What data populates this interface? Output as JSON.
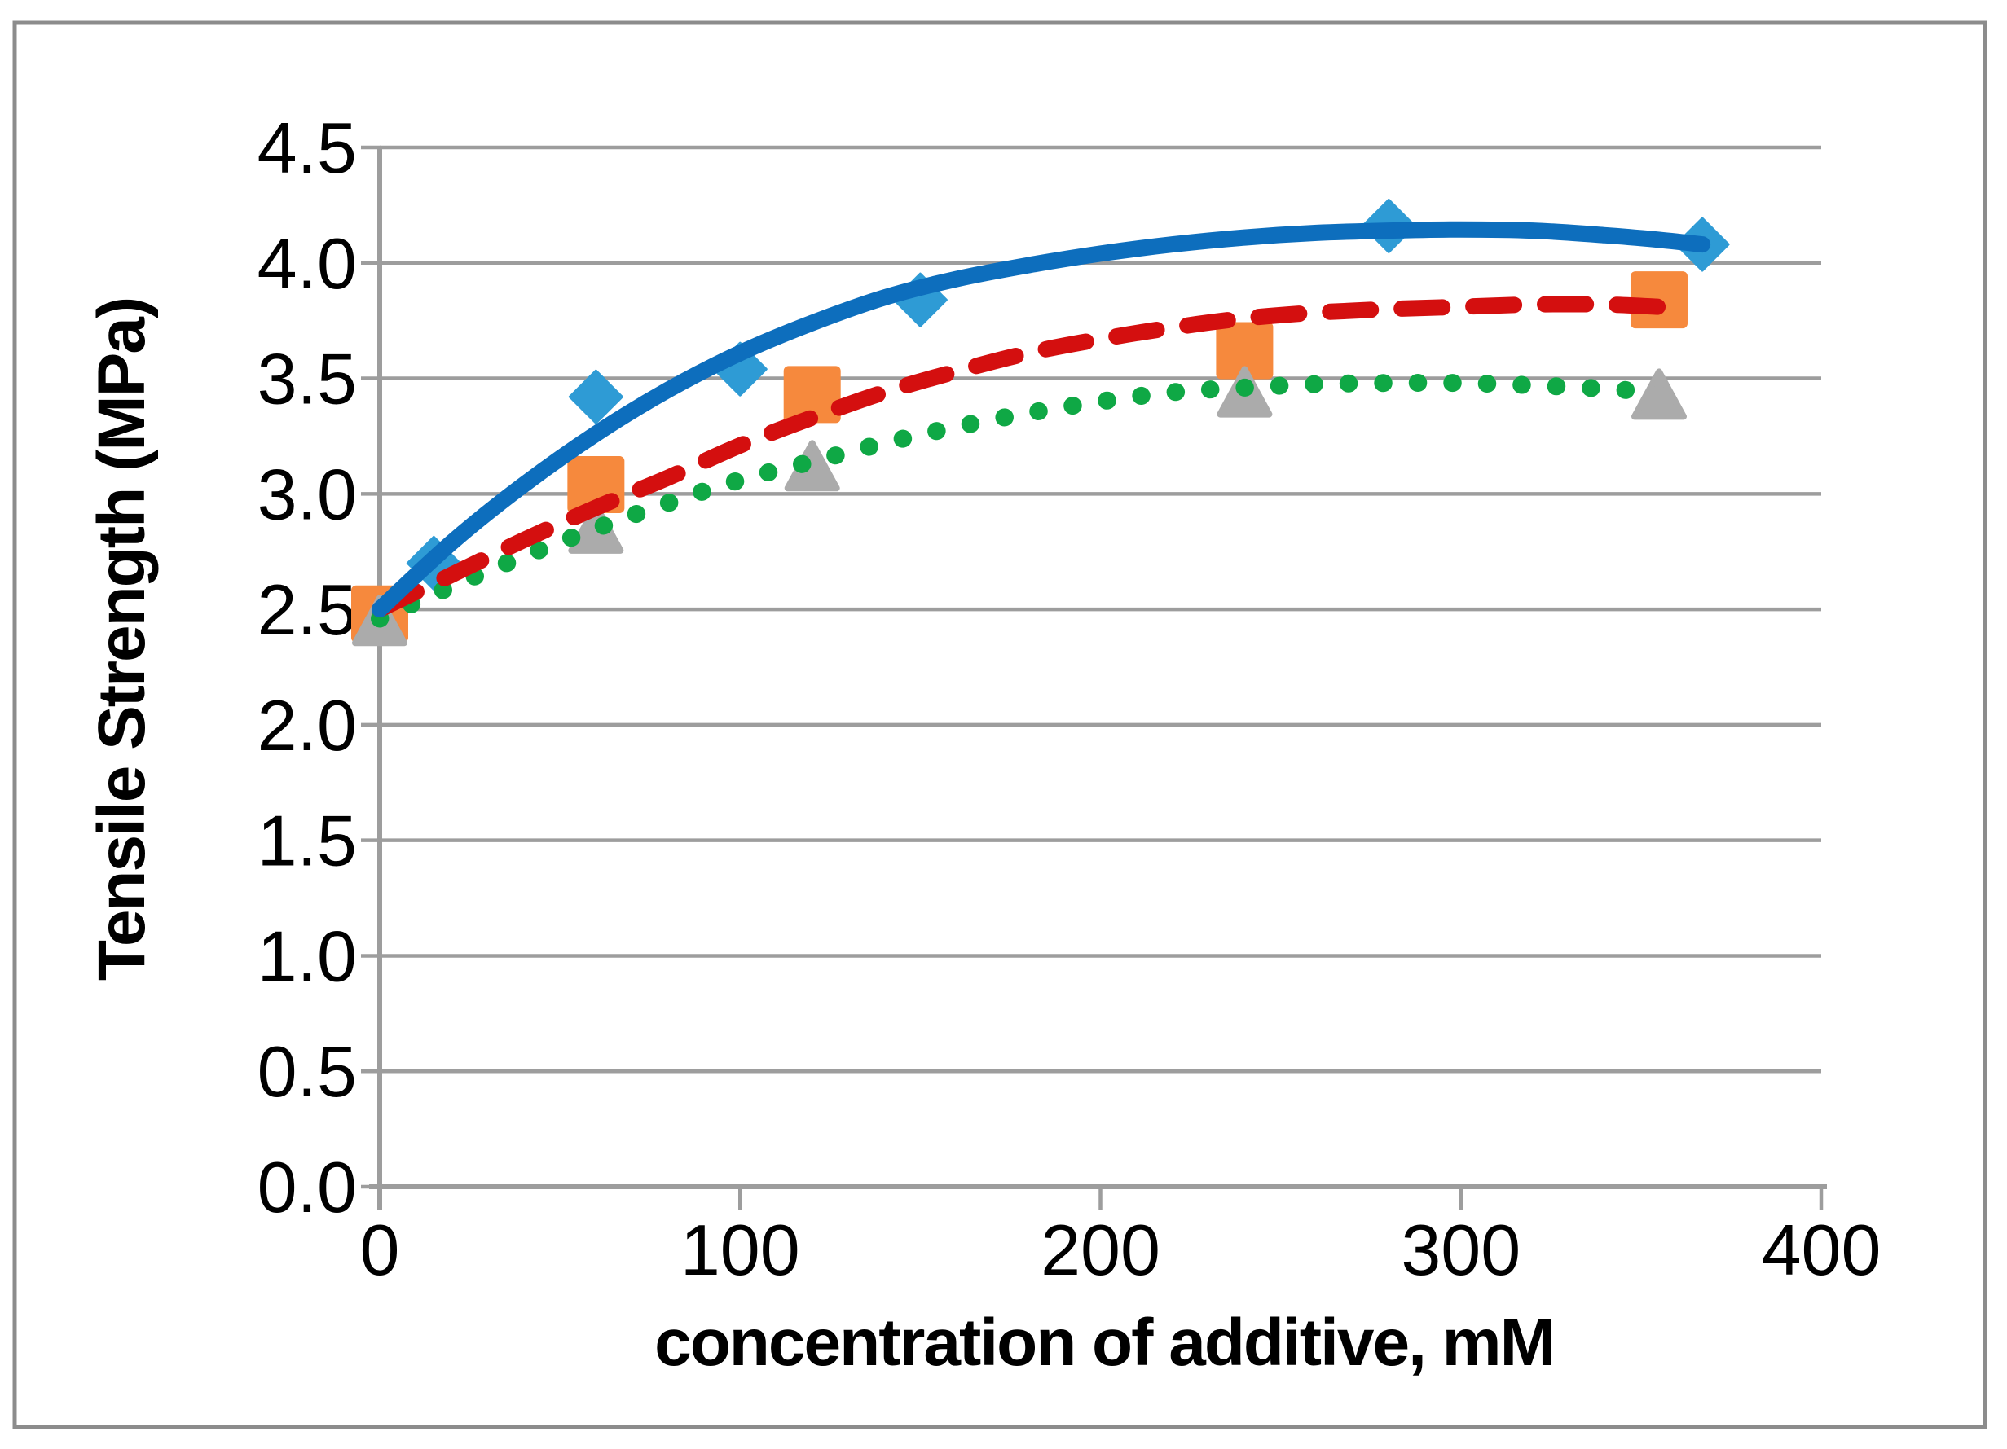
{
  "page": {
    "background": "#FFFFFF",
    "border_color": "#8C8C8C"
  },
  "chart_data": {
    "type": "scatter",
    "title": "",
    "xlabel": "concentration of additive, mM",
    "ylabel": "Tensile Strength (MPa)",
    "xlim": [
      0,
      400
    ],
    "ylim": [
      0.0,
      4.5
    ],
    "grid": {
      "horizontal": true,
      "vertical": false,
      "color": "#9D9D9D"
    },
    "legend": "none",
    "x_ticks": {
      "values": [
        0,
        100,
        200,
        300,
        400
      ],
      "labels": [
        "0",
        "100",
        "200",
        "300",
        "400"
      ]
    },
    "y_ticks": {
      "values": [
        0,
        0.5,
        1.0,
        1.5,
        2.0,
        2.5,
        3.0,
        3.5,
        4.0,
        4.5
      ],
      "labels": [
        "0.0",
        "0.5",
        "1.0",
        "1.5",
        "2.0",
        "2.5",
        "3.0",
        "3.5",
        "4.0",
        "4.5"
      ]
    },
    "series": [
      {
        "name": "blue-diamond-series",
        "marker": "diamond",
        "marker_color": "#2E9BD5",
        "points": [
          [
            0,
            2.47
          ],
          [
            15,
            2.7
          ],
          [
            60,
            3.42
          ],
          [
            100,
            3.54
          ],
          [
            150,
            3.84
          ],
          [
            280,
            4.16
          ],
          [
            367,
            4.08
          ]
        ],
        "trendline": {
          "style": "solid",
          "color": "#0D6EBD",
          "path": [
            [
              0,
              2.5
            ],
            [
              20,
              2.79
            ],
            [
              40,
              3.04
            ],
            [
              60,
              3.26
            ],
            [
              80,
              3.45
            ],
            [
              100,
              3.61
            ],
            [
              120,
              3.74
            ],
            [
              140,
              3.85
            ],
            [
              160,
              3.93
            ],
            [
              180,
              3.99
            ],
            [
              200,
              4.04
            ],
            [
              220,
              4.08
            ],
            [
              240,
              4.11
            ],
            [
              260,
              4.13
            ],
            [
              280,
              4.14
            ],
            [
              300,
              4.145
            ],
            [
              320,
              4.14
            ],
            [
              340,
              4.12
            ],
            [
              355,
              4.1
            ],
            [
              367,
              4.08
            ]
          ]
        }
      },
      {
        "name": "orange-square-series",
        "marker": "square",
        "marker_color": "#F6893D",
        "points": [
          [
            0,
            2.48
          ],
          [
            60,
            3.04
          ],
          [
            120,
            3.43
          ],
          [
            240,
            3.62
          ],
          [
            355,
            3.84
          ]
        ],
        "trendline": {
          "style": "dashed",
          "color": "#D40F0F",
          "path": [
            [
              0,
              2.5
            ],
            [
              20,
              2.65
            ],
            [
              40,
              2.8
            ],
            [
              60,
              2.94
            ],
            [
              80,
              3.07
            ],
            [
              100,
              3.21
            ],
            [
              120,
              3.33
            ],
            [
              140,
              3.44
            ],
            [
              160,
              3.53
            ],
            [
              180,
              3.61
            ],
            [
              200,
              3.67
            ],
            [
              220,
              3.72
            ],
            [
              240,
              3.76
            ],
            [
              260,
              3.785
            ],
            [
              280,
              3.8
            ],
            [
              300,
              3.81
            ],
            [
              320,
              3.82
            ],
            [
              340,
              3.82
            ],
            [
              355,
              3.81
            ]
          ]
        }
      },
      {
        "name": "gray-triangle-series",
        "marker": "triangle",
        "marker_color": "#ABABAB",
        "points": [
          [
            0,
            2.45
          ],
          [
            60,
            2.85
          ],
          [
            120,
            3.12
          ],
          [
            240,
            3.44
          ],
          [
            355,
            3.43
          ]
        ],
        "trendline": {
          "style": "dotted",
          "color": "#0FA845",
          "path": [
            [
              0,
              2.46
            ],
            [
              20,
              2.6
            ],
            [
              40,
              2.73
            ],
            [
              60,
              2.85
            ],
            [
              80,
              2.96
            ],
            [
              100,
              3.06
            ],
            [
              120,
              3.14
            ],
            [
              140,
              3.22
            ],
            [
              160,
              3.29
            ],
            [
              180,
              3.35
            ],
            [
              200,
              3.4
            ],
            [
              220,
              3.44
            ],
            [
              240,
              3.46
            ],
            [
              260,
              3.475
            ],
            [
              280,
              3.48
            ],
            [
              300,
              3.48
            ],
            [
              320,
              3.47
            ],
            [
              340,
              3.455
            ],
            [
              355,
              3.44
            ]
          ]
        }
      }
    ]
  }
}
